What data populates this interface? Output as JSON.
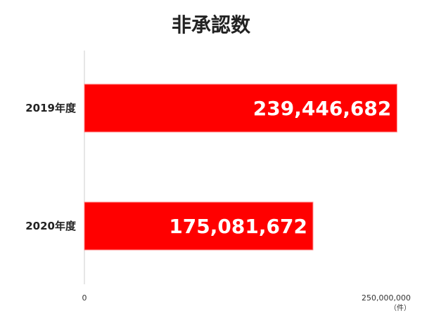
{
  "chart_data": {
    "type": "bar",
    "orientation": "horizontal",
    "title": "非承認数",
    "categories": [
      "2019年度",
      "2020年度"
    ],
    "values": [
      239446682,
      175081672
    ],
    "value_labels": [
      "239,446,682",
      "175,081,672"
    ],
    "xlim": [
      0,
      250000000
    ],
    "x_tick_labels": [
      "0",
      "250,000,000"
    ],
    "unit": "（件）",
    "grid": false,
    "legend": "none",
    "bar_color": "#ff0000",
    "bar_edge_color": "#ff8080"
  }
}
